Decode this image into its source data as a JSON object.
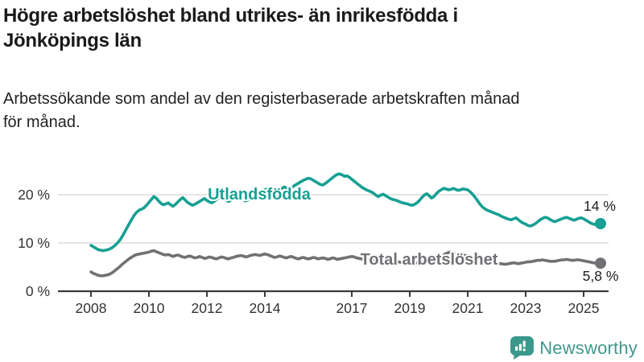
{
  "header": {
    "title_line1": "Högre arbetslöshet bland utrikes- än inrikesfödda i",
    "title_line2": "Jönköpings län",
    "subtitle_line1": "Arbetssökande som andel av den registerbaserade arbetskraften månad",
    "subtitle_line2": "för månad."
  },
  "branding": {
    "logo_text": "Newsworthy",
    "logo_color": "#41988c",
    "logo_icon": "bar-chart-speech-bubble"
  },
  "colors": {
    "background": "#ffffff",
    "axis": "#3a3a3a",
    "gridline": "#dcdcdc",
    "tick_text": "#333333",
    "series_foreign": "#17a093",
    "series_total": "#717175",
    "end_label_text": "#222222"
  },
  "chart_data": {
    "type": "line",
    "unit": "%",
    "x_start": 2008.0,
    "x_step_months": 1,
    "x_end": 2025.583,
    "ylim": [
      0,
      25
    ],
    "grid": "horizontal",
    "legend_position": "inline-labels",
    "yticks": [
      {
        "value": 0,
        "label": "0 %"
      },
      {
        "value": 10,
        "label": "10 %"
      },
      {
        "value": 20,
        "label": "20 %"
      }
    ],
    "xticks": [
      {
        "value": 2008,
        "label": "2008"
      },
      {
        "value": 2010,
        "label": "2010"
      },
      {
        "value": 2012,
        "label": "2012"
      },
      {
        "value": 2014,
        "label": "2014"
      },
      {
        "value": 2017,
        "label": "2017"
      },
      {
        "value": 2019,
        "label": "2019"
      },
      {
        "value": 2021,
        "label": "2021"
      },
      {
        "value": 2023,
        "label": "2023"
      },
      {
        "value": 2025,
        "label": "2025"
      }
    ],
    "series": [
      {
        "name": "Utlandsfödda",
        "color": "#17a093",
        "end_value": 14,
        "end_label": "14 %",
        "values": [
          9.5,
          9.2,
          8.9,
          8.6,
          8.5,
          8.4,
          8.5,
          8.6,
          8.8,
          9.1,
          9.5,
          10.0,
          10.6,
          11.4,
          12.3,
          13.2,
          14.1,
          15.0,
          15.8,
          16.4,
          16.8,
          17.0,
          17.3,
          17.8,
          18.4,
          19.0,
          19.6,
          19.3,
          18.7,
          18.2,
          17.9,
          18.1,
          18.3,
          17.9,
          17.6,
          18.0,
          18.5,
          19.0,
          19.4,
          18.9,
          18.4,
          18.1,
          17.8,
          18.0,
          18.3,
          18.6,
          18.9,
          19.2,
          18.8,
          18.5,
          18.3,
          18.6,
          19.0,
          19.4,
          19.7,
          19.3,
          18.9,
          18.6,
          18.9,
          19.3,
          19.6,
          19.8,
          19.4,
          19.0,
          18.7,
          18.9,
          19.2,
          19.5,
          19.8,
          20.1,
          20.4,
          20.7,
          21.0,
          21.2,
          20.9,
          20.6,
          20.4,
          20.7,
          21.0,
          21.3,
          21.6,
          21.4,
          21.2,
          21.5,
          21.8,
          22.1,
          22.4,
          22.7,
          23.0,
          23.2,
          23.4,
          23.3,
          23.0,
          22.7,
          22.4,
          22.1,
          22.0,
          22.3,
          22.7,
          23.1,
          23.5,
          23.9,
          24.2,
          24.3,
          24.1,
          23.8,
          23.9,
          23.6,
          23.2,
          22.8,
          22.4,
          22.0,
          21.6,
          21.3,
          21.0,
          20.8,
          20.6,
          20.3,
          19.9,
          19.6,
          19.9,
          20.1,
          19.8,
          19.5,
          19.2,
          19.0,
          18.9,
          18.7,
          18.5,
          18.3,
          18.2,
          18.1,
          17.9,
          17.8,
          18.0,
          18.3,
          18.8,
          19.4,
          19.9,
          20.2,
          19.8,
          19.3,
          19.6,
          20.2,
          20.7,
          21.0,
          21.3,
          21.2,
          21.0,
          21.1,
          21.3,
          21.1,
          20.9,
          21.0,
          21.2,
          21.1,
          21.0,
          20.6,
          20.1,
          19.5,
          18.8,
          18.1,
          17.5,
          17.1,
          16.8,
          16.6,
          16.4,
          16.2,
          16.0,
          15.8,
          15.5,
          15.3,
          15.1,
          14.9,
          14.8,
          15.0,
          15.2,
          14.8,
          14.4,
          14.1,
          13.9,
          13.6,
          13.5,
          13.7,
          14.0,
          14.4,
          14.8,
          15.1,
          15.3,
          15.2,
          14.9,
          14.6,
          14.4,
          14.6,
          14.8,
          15.0,
          15.2,
          15.3,
          15.1,
          14.9,
          14.7,
          14.9,
          15.1,
          15.2,
          15.0,
          14.7,
          14.4,
          14.1,
          13.9,
          13.8,
          13.9,
          14.0
        ]
      },
      {
        "name": "Total arbetslöshet",
        "color": "#717175",
        "end_value": 5.8,
        "end_label": "5,8 %",
        "values": [
          4.0,
          3.7,
          3.5,
          3.3,
          3.2,
          3.2,
          3.3,
          3.4,
          3.6,
          3.9,
          4.3,
          4.7,
          5.1,
          5.6,
          6.0,
          6.4,
          6.8,
          7.1,
          7.4,
          7.6,
          7.7,
          7.8,
          7.9,
          8.0,
          8.1,
          8.3,
          8.4,
          8.2,
          8.0,
          7.8,
          7.6,
          7.5,
          7.6,
          7.4,
          7.2,
          7.4,
          7.5,
          7.3,
          7.1,
          7.0,
          7.2,
          7.3,
          7.1,
          6.9,
          7.0,
          7.2,
          7.0,
          6.8,
          6.9,
          7.1,
          7.0,
          6.8,
          6.7,
          6.9,
          7.1,
          7.0,
          6.8,
          6.7,
          6.9,
          7.0,
          7.2,
          7.3,
          7.4,
          7.3,
          7.1,
          7.2,
          7.4,
          7.5,
          7.6,
          7.5,
          7.4,
          7.6,
          7.7,
          7.6,
          7.4,
          7.2,
          7.0,
          7.1,
          7.3,
          7.2,
          7.0,
          6.9,
          7.1,
          7.2,
          7.0,
          6.8,
          6.7,
          6.9,
          7.0,
          6.8,
          6.7,
          6.8,
          7.0,
          6.9,
          6.7,
          6.8,
          6.9,
          6.8,
          6.6,
          6.7,
          6.9,
          6.8,
          6.6,
          6.7,
          6.8,
          6.9,
          7.0,
          7.1,
          7.2,
          7.1,
          6.9,
          6.8,
          6.7,
          6.6,
          6.5,
          6.6,
          6.7,
          6.6,
          6.5,
          6.4,
          6.5,
          6.4,
          6.3,
          6.2,
          6.1,
          6.0,
          6.0,
          6.1,
          6.0,
          5.9,
          5.8,
          5.9,
          6.0,
          5.9,
          5.8,
          5.9,
          6.0,
          6.1,
          6.2,
          6.3,
          6.4,
          6.3,
          6.4,
          6.6,
          6.9,
          7.2,
          7.5,
          7.8,
          8.0,
          8.1,
          8.0,
          7.9,
          7.8,
          7.6,
          7.5,
          7.4,
          7.3,
          7.2,
          7.0,
          6.8,
          6.6,
          6.4,
          6.2,
          6.1,
          6.0,
          5.9,
          5.8,
          5.8,
          5.8,
          5.7,
          5.7,
          5.6,
          5.6,
          5.7,
          5.8,
          5.9,
          5.8,
          5.7,
          5.8,
          5.9,
          6.0,
          6.1,
          6.1,
          6.2,
          6.3,
          6.4,
          6.4,
          6.5,
          6.4,
          6.3,
          6.2,
          6.2,
          6.2,
          6.3,
          6.4,
          6.5,
          6.5,
          6.6,
          6.5,
          6.4,
          6.4,
          6.5,
          6.5,
          6.4,
          6.3,
          6.2,
          6.1,
          6.0,
          5.9,
          5.8,
          5.8,
          5.8
        ]
      }
    ]
  }
}
